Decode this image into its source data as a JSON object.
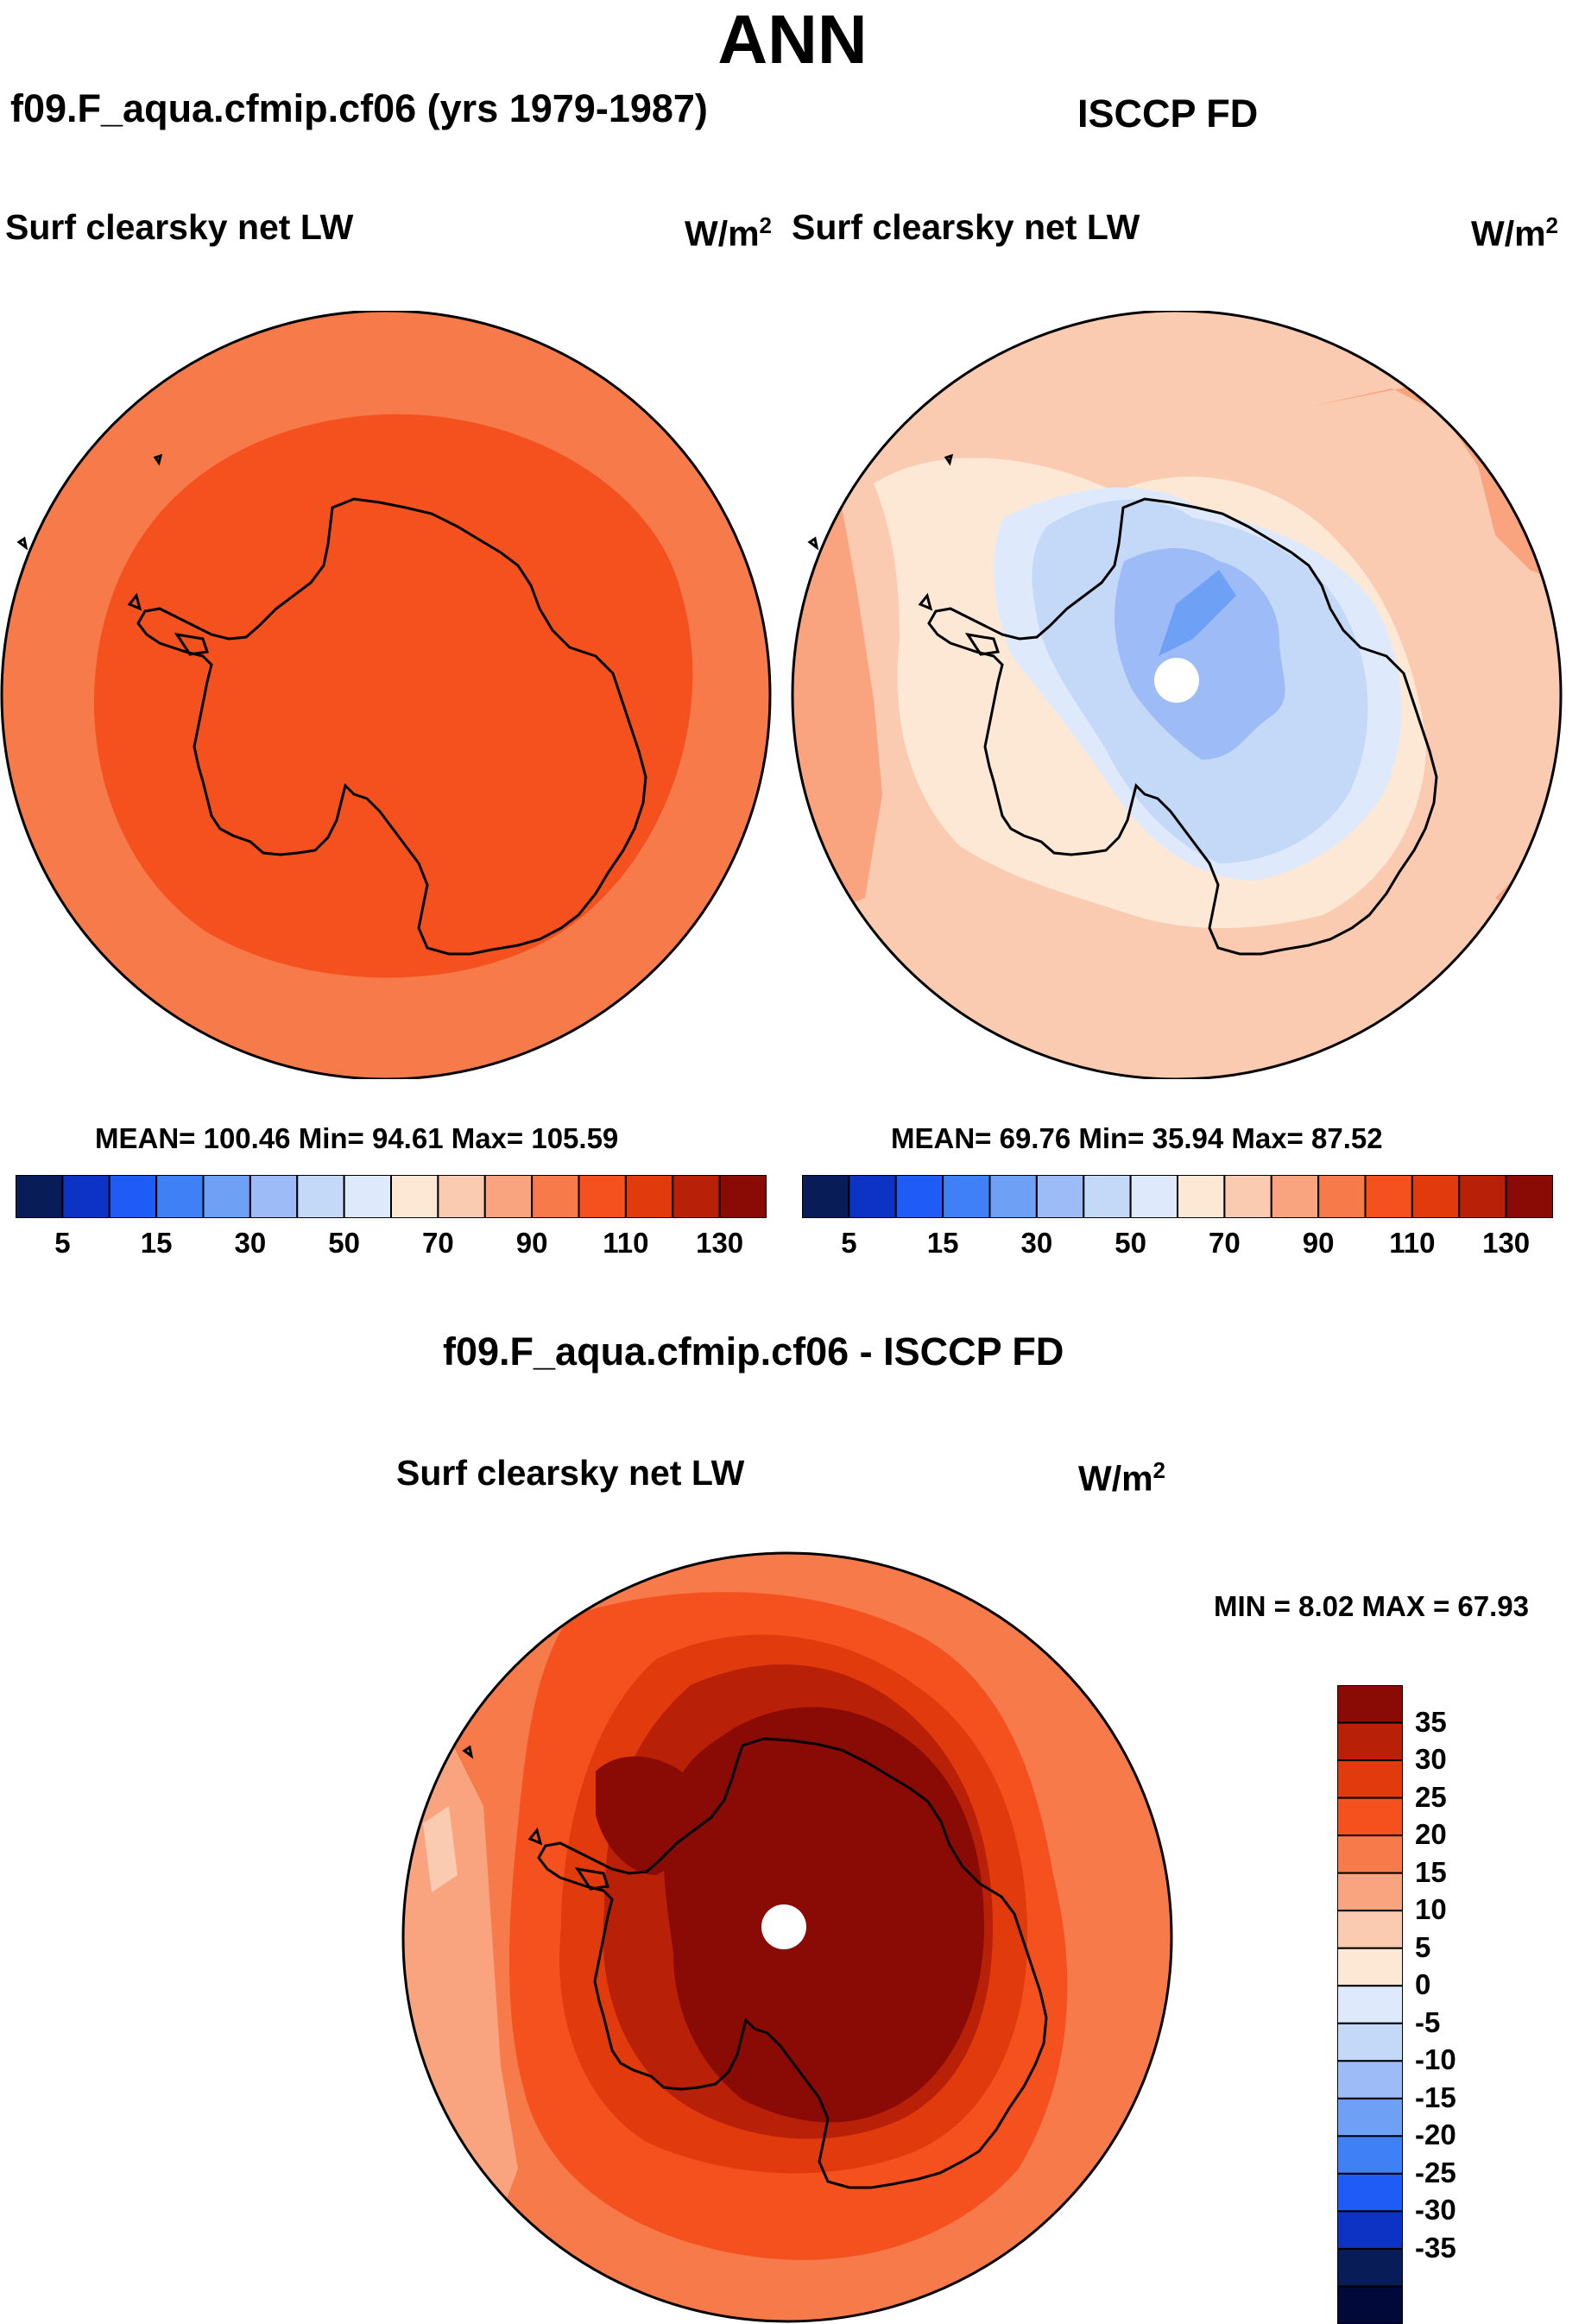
{
  "page": {
    "title": "ANN"
  },
  "panels": [
    {
      "id": "model",
      "title": "f09.F_aqua.cfmip.cf06 (yrs 1979-1987)",
      "variable": "Surf clearsky net LW",
      "units": "W/m",
      "units_exp": "2",
      "stats": "MEAN= 100.46  Min=  94.61  Max= 105.59"
    },
    {
      "id": "obs",
      "title": "ISCCP FD",
      "variable": "Surf clearsky net LW",
      "units": "W/m",
      "units_exp": "2",
      "stats": "MEAN=  69.76  Min=  35.94  Max=  87.52"
    },
    {
      "id": "diff",
      "title": "f09.F_aqua.cfmip.cf06 - ISCCP FD",
      "variable": "Surf clearsky net LW",
      "units": "W/m",
      "units_exp": "2",
      "stats": "MIN =   8.02 MAX =  67.93"
    }
  ],
  "abs_colorbar": {
    "labels": [
      "5",
      "15",
      "30",
      "50",
      "70",
      "90",
      "110",
      "130"
    ],
    "colors": [
      "#081d58",
      "#0c33c4",
      "#1f5cf5",
      "#3f80f7",
      "#6ea1f6",
      "#9dbcf7",
      "#c4d8f8",
      "#deeafb",
      "#fde8d6",
      "#fbcbb1",
      "#f9a47f",
      "#f67a4a",
      "#f4511e",
      "#e03a0d",
      "#b82008",
      "#8a0b05"
    ]
  },
  "diff_colorbar": {
    "labels": [
      "35",
      "30",
      "25",
      "20",
      "15",
      "10",
      "5",
      "0",
      "-5",
      "-10",
      "-15",
      "-20",
      "-25",
      "-30",
      "-35"
    ],
    "colors": [
      "#8a0b05",
      "#b82008",
      "#e03a0d",
      "#f4511e",
      "#f67a4a",
      "#f9a47f",
      "#fbcbb1",
      "#fde8d6",
      "#deeafb",
      "#c4d8f8",
      "#9dbcf7",
      "#6ea1f6",
      "#3f80f7",
      "#1f5cf5",
      "#0c33c4",
      "#081d58",
      "#000a3a"
    ]
  }
}
